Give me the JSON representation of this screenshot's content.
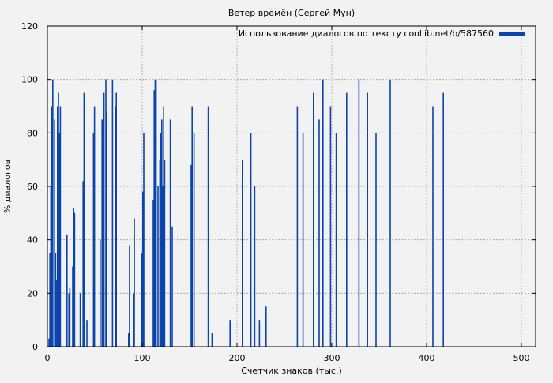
{
  "chart_data": {
    "type": "bar",
    "title": "Ветер времён (Сергей Мун)",
    "xlabel": "Счетчик знаков (тыс.)",
    "ylabel": "% диалогов",
    "xlim": [
      0,
      515
    ],
    "ylim": [
      0,
      120
    ],
    "x_ticks": [
      0,
      100,
      200,
      300,
      400,
      500
    ],
    "y_ticks": [
      0,
      20,
      40,
      60,
      80,
      100,
      120
    ],
    "grid": true,
    "legend_position": "top-right",
    "colors": {
      "series": "#0b44aa",
      "grid": "#a0a0a0",
      "background": "#f2f2f2"
    },
    "series": [
      {
        "name": "Использование диалогов по тексту coollib.net/b/587560",
        "x_step": 1,
        "values": [
          0,
          3,
          35,
          60,
          90,
          100,
          0,
          85,
          35,
          25,
          90,
          95,
          80,
          90,
          0,
          0,
          0,
          0,
          0,
          0,
          42,
          0,
          20,
          22,
          0,
          0,
          30,
          52,
          50,
          0,
          0,
          0,
          0,
          0,
          20,
          0,
          0,
          62,
          95,
          0,
          0,
          10,
          0,
          0,
          0,
          0,
          0,
          0,
          80,
          90,
          0,
          0,
          0,
          0,
          0,
          40,
          0,
          85,
          55,
          95,
          0,
          100,
          88,
          0,
          0,
          0,
          0,
          0,
          100,
          0,
          0,
          90,
          95,
          0,
          0,
          0,
          0,
          0,
          0,
          0,
          0,
          0,
          0,
          0,
          0,
          5,
          38,
          0,
          0,
          0,
          20,
          48,
          0,
          0,
          0,
          0,
          0,
          0,
          0,
          35,
          58,
          80,
          0,
          0,
          0,
          0,
          0,
          0,
          0,
          0,
          0,
          55,
          96,
          100,
          100,
          0,
          60,
          0,
          70,
          80,
          85,
          60,
          90,
          70,
          0,
          0,
          0,
          0,
          0,
          85,
          0,
          45,
          0,
          0,
          0,
          0,
          0,
          0,
          0,
          0,
          0,
          0,
          0,
          0,
          0,
          0,
          0,
          0,
          0,
          0,
          0,
          68,
          90,
          0,
          80,
          0,
          0,
          0,
          0,
          0,
          0,
          0,
          0,
          0,
          0,
          0,
          0,
          0,
          0,
          90,
          0,
          0,
          0,
          5,
          0,
          0,
          0,
          0,
          0,
          0,
          0,
          0,
          0,
          0,
          0,
          0,
          0,
          0,
          0,
          0,
          0,
          0,
          10,
          0,
          0,
          0,
          0,
          0,
          0,
          0,
          0,
          0,
          0,
          0,
          0,
          70,
          0,
          0,
          0,
          0,
          0,
          0,
          0,
          0,
          80,
          0,
          0,
          0,
          60,
          0,
          0,
          0,
          0,
          10,
          0,
          0,
          0,
          0,
          0,
          0,
          15,
          0,
          0,
          0,
          0,
          0,
          0,
          0,
          0,
          0,
          0,
          0,
          0,
          0,
          0,
          0,
          0,
          0,
          0,
          0,
          0,
          0,
          0,
          0,
          0,
          0,
          0,
          0,
          0,
          0,
          0,
          0,
          0,
          90,
          0,
          0,
          0,
          0,
          0,
          80,
          0,
          0,
          0,
          0,
          0,
          0,
          0,
          0,
          0,
          0,
          95,
          0,
          0,
          0,
          0,
          0,
          85,
          0,
          0,
          0,
          100,
          0,
          0,
          0,
          0,
          0,
          0,
          0,
          90,
          0,
          0,
          0,
          0,
          0,
          80,
          0,
          0,
          0,
          0,
          0,
          0,
          0,
          0,
          0,
          0,
          95,
          0,
          0,
          0,
          0,
          0,
          0,
          0,
          0,
          0,
          0,
          0,
          0,
          100,
          0,
          0,
          0,
          0,
          0,
          0,
          0,
          0,
          95,
          0,
          0,
          0,
          0,
          0,
          0,
          0,
          0,
          80,
          0,
          0,
          0,
          0,
          0,
          0,
          0,
          0,
          0,
          0,
          0,
          0,
          0,
          0,
          100,
          0,
          0,
          0,
          0,
          0,
          0,
          0,
          0,
          0,
          0,
          0,
          0,
          0,
          0,
          0,
          0,
          0,
          0,
          0,
          0,
          0,
          0,
          0,
          0,
          0,
          0,
          0,
          0,
          0,
          0,
          0,
          0,
          0,
          0,
          0,
          0,
          0,
          0,
          0,
          0,
          0,
          0,
          0,
          0,
          90,
          0,
          0,
          0,
          0,
          0,
          0,
          0,
          0,
          0,
          0,
          95,
          0,
          0,
          0,
          0,
          0,
          0,
          0,
          0,
          0,
          0,
          0,
          0,
          0,
          0,
          0,
          0,
          0,
          0,
          0,
          0,
          0,
          0,
          0,
          0,
          0,
          0,
          0,
          0,
          0,
          0,
          0,
          0,
          0,
          0,
          0,
          0,
          0,
          0,
          0,
          0,
          0,
          0,
          0,
          0,
          0,
          0,
          0,
          0,
          0,
          0,
          0,
          0,
          0,
          0,
          0,
          0,
          0,
          0,
          0,
          0,
          0,
          0,
          0,
          0,
          0,
          0,
          0,
          0,
          0,
          0,
          0,
          0,
          0,
          0,
          0,
          0,
          0,
          0,
          0,
          0,
          0,
          0,
          0,
          0,
          0,
          0,
          0,
          0,
          0,
          0,
          0,
          0,
          0,
          0,
          0,
          0,
          0,
          0,
          0,
          0,
          0,
          0,
          0,
          0,
          0,
          0,
          0,
          0,
          0,
          0,
          0,
          0,
          0,
          0,
          0,
          0,
          0,
          0,
          0,
          0,
          0,
          0,
          0,
          0,
          0,
          0,
          0,
          0,
          0,
          0,
          0,
          0,
          0
        ]
      }
    ]
  }
}
